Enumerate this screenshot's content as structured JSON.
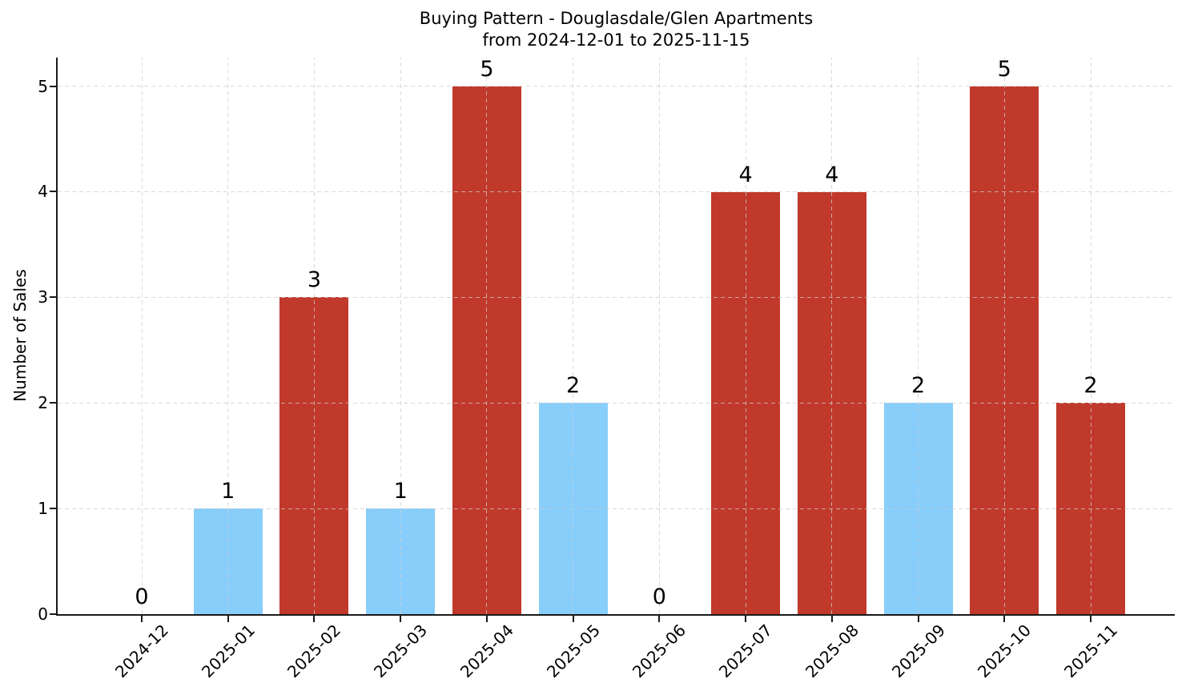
{
  "chart_data": {
    "type": "bar",
    "title": "Buying Pattern - Douglasdale/Glen Apartments\nfrom 2024-12-01 to 2025-11-15",
    "title_lines": [
      "Buying Pattern - Douglasdale/Glen Apartments",
      "from 2024-12-01 to 2025-11-15"
    ],
    "xlabel": "",
    "ylabel": "Number of Sales",
    "categories": [
      "2024-12",
      "2025-01",
      "2025-02",
      "2025-03",
      "2025-04",
      "2025-05",
      "2025-06",
      "2025-07",
      "2025-08",
      "2025-09",
      "2025-10",
      "2025-11"
    ],
    "values": [
      0,
      1,
      3,
      1,
      5,
      2,
      0,
      4,
      4,
      2,
      5,
      2
    ],
    "value_labels": [
      "0",
      "1",
      "3",
      "1",
      "5",
      "2",
      "0",
      "4",
      "4",
      "2",
      "5",
      "2"
    ],
    "bar_colors": [
      null,
      "#87cefa",
      "#c0392b",
      "#87cefa",
      "#c0392b",
      "#87cefa",
      null,
      "#c0392b",
      "#c0392b",
      "#87cefa",
      "#c0392b",
      "#c0392b"
    ],
    "yticks": [
      "0",
      "1",
      "2",
      "3",
      "4",
      "5"
    ],
    "ylim": [
      0,
      5.27
    ],
    "grid": {
      "visible": true,
      "style": "dashed",
      "axes": "both",
      "color": "#cdcdcd"
    },
    "legend": "none",
    "colors": {
      "bar_red": "#c0392b",
      "bar_blue": "#87cefa",
      "axis": "#1a1a1a",
      "text": "#000000",
      "background": "#ffffff"
    }
  }
}
